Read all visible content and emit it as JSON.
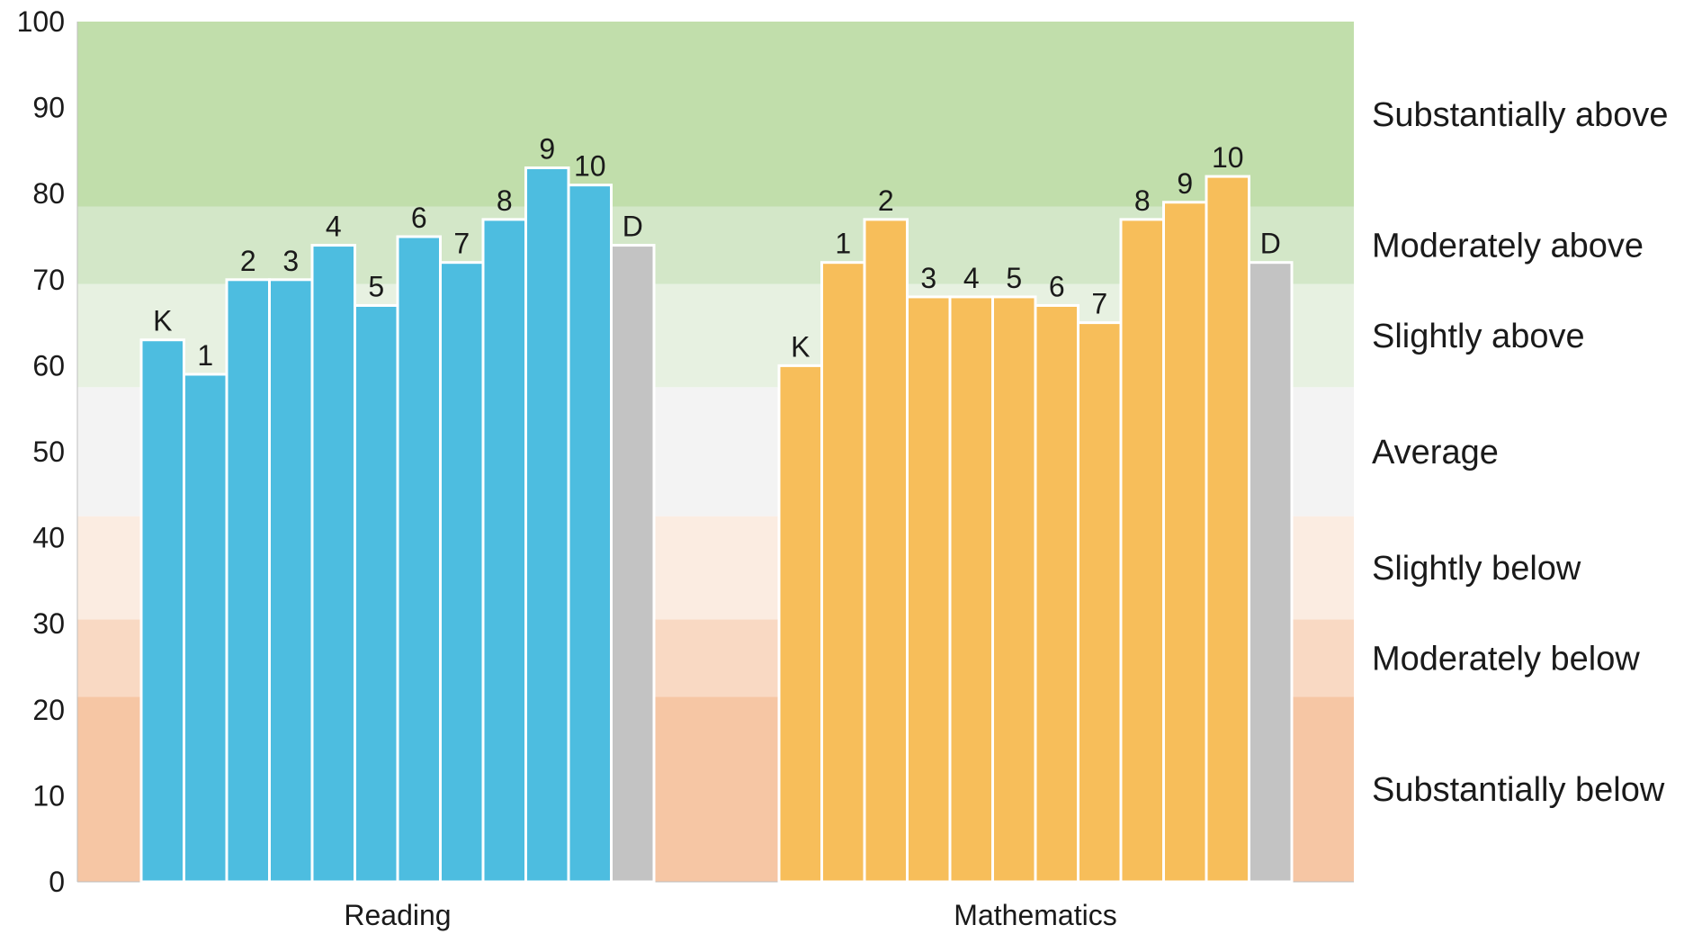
{
  "chart_data": {
    "type": "bar",
    "title": "",
    "xlabel": "",
    "ylabel": "",
    "ylim": [
      0,
      100
    ],
    "yticks": [
      0,
      10,
      20,
      30,
      40,
      50,
      60,
      70,
      80,
      90,
      100
    ],
    "bands": [
      {
        "label": "Substantially below",
        "from": 0,
        "to": 21.5,
        "color": "#f6c6a4"
      },
      {
        "label": "Moderately below",
        "from": 21.5,
        "to": 30.5,
        "color": "#f9d9c3"
      },
      {
        "label": "Slightly below",
        "from": 30.5,
        "to": 42.5,
        "color": "#fbece1"
      },
      {
        "label": "Average",
        "from": 42.5,
        "to": 57.5,
        "color": "#f3f3f3"
      },
      {
        "label": "Slightly above",
        "from": 57.5,
        "to": 69.5,
        "color": "#e7f1e1"
      },
      {
        "label": "Moderately above",
        "from": 69.5,
        "to": 78.5,
        "color": "#d3e7c8"
      },
      {
        "label": "Substantially above",
        "from": 78.5,
        "to": 100,
        "color": "#c1deab"
      }
    ],
    "groups": [
      {
        "name": "Reading",
        "color": "#4dbde0",
        "bars": [
          {
            "label": "K",
            "value": 63
          },
          {
            "label": "1",
            "value": 59
          },
          {
            "label": "2",
            "value": 70
          },
          {
            "label": "3",
            "value": 70
          },
          {
            "label": "4",
            "value": 74
          },
          {
            "label": "5",
            "value": 67
          },
          {
            "label": "6",
            "value": 75
          },
          {
            "label": "7",
            "value": 72
          },
          {
            "label": "8",
            "value": 77
          },
          {
            "label": "9",
            "value": 83
          },
          {
            "label": "10",
            "value": 81
          },
          {
            "label": "D",
            "value": 74
          }
        ]
      },
      {
        "name": "Mathematics",
        "color": "#f7be5a",
        "bars": [
          {
            "label": "K",
            "value": 60
          },
          {
            "label": "1",
            "value": 72
          },
          {
            "label": "2",
            "value": 77
          },
          {
            "label": "3",
            "value": 68
          },
          {
            "label": "4",
            "value": 68
          },
          {
            "label": "5",
            "value": 68
          },
          {
            "label": "6",
            "value": 67
          },
          {
            "label": "7",
            "value": 65
          },
          {
            "label": "8",
            "value": 77
          },
          {
            "label": "9",
            "value": 79
          },
          {
            "label": "10",
            "value": 82
          },
          {
            "label": "D",
            "value": 72
          }
        ]
      }
    ],
    "highlight_bar": {
      "label": "D",
      "color": "#c3c3c3"
    }
  }
}
